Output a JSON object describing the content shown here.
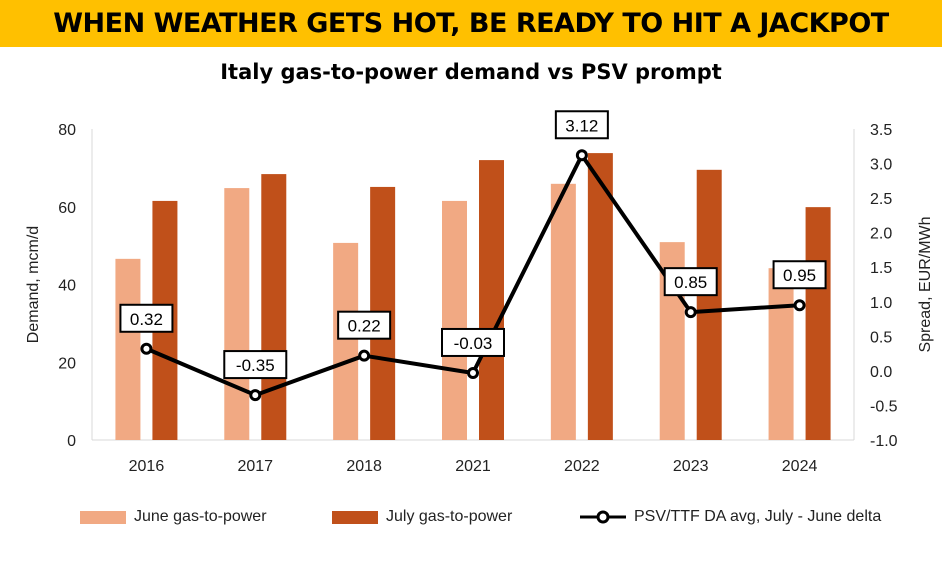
{
  "banner": "WHEN WEATHER GETS HOT, BE READY TO HIT A JACKPOT",
  "chart_data": {
    "type": "bar",
    "title": "Italy gas-to-power demand vs PSV prompt",
    "categories": [
      "2016",
      "2017",
      "2018",
      "2021",
      "2022",
      "2023",
      "2024"
    ],
    "ylabel": "Demand, mcm/d",
    "ylim": [
      0,
      80
    ],
    "yticks": [
      "0",
      "20",
      "40",
      "60",
      "80"
    ],
    "y2label": "Spread, EUR/MWh",
    "y2lim": [
      -1.0,
      3.5
    ],
    "y2ticks": [
      "-1.0",
      "-0.5",
      "0.0",
      "0.5",
      "1.0",
      "1.5",
      "2.0",
      "2.5",
      "3.0",
      "3.5"
    ],
    "grid": false,
    "legend": "bottom",
    "series": [
      {
        "name": "June gas-to-power",
        "type": "bar",
        "axis": "left",
        "color": "#F1A983",
        "values": [
          46.6,
          64.8,
          50.7,
          61.5,
          65.9,
          50.9,
          44.2
        ]
      },
      {
        "name": "July gas-to-power",
        "type": "bar",
        "axis": "left",
        "color": "#C0501A",
        "values": [
          61.5,
          68.4,
          65.1,
          72.0,
          73.8,
          69.5,
          59.9
        ]
      },
      {
        "name": "PSV/TTF DA avg, July - June delta",
        "type": "line",
        "axis": "right",
        "color": "#000000",
        "values": [
          0.32,
          -0.35,
          0.22,
          -0.03,
          3.12,
          0.85,
          0.95
        ],
        "labels": [
          "0.32",
          "-0.35",
          "0.22",
          "-0.03",
          "3.12",
          "0.85",
          "0.95"
        ]
      }
    ]
  }
}
